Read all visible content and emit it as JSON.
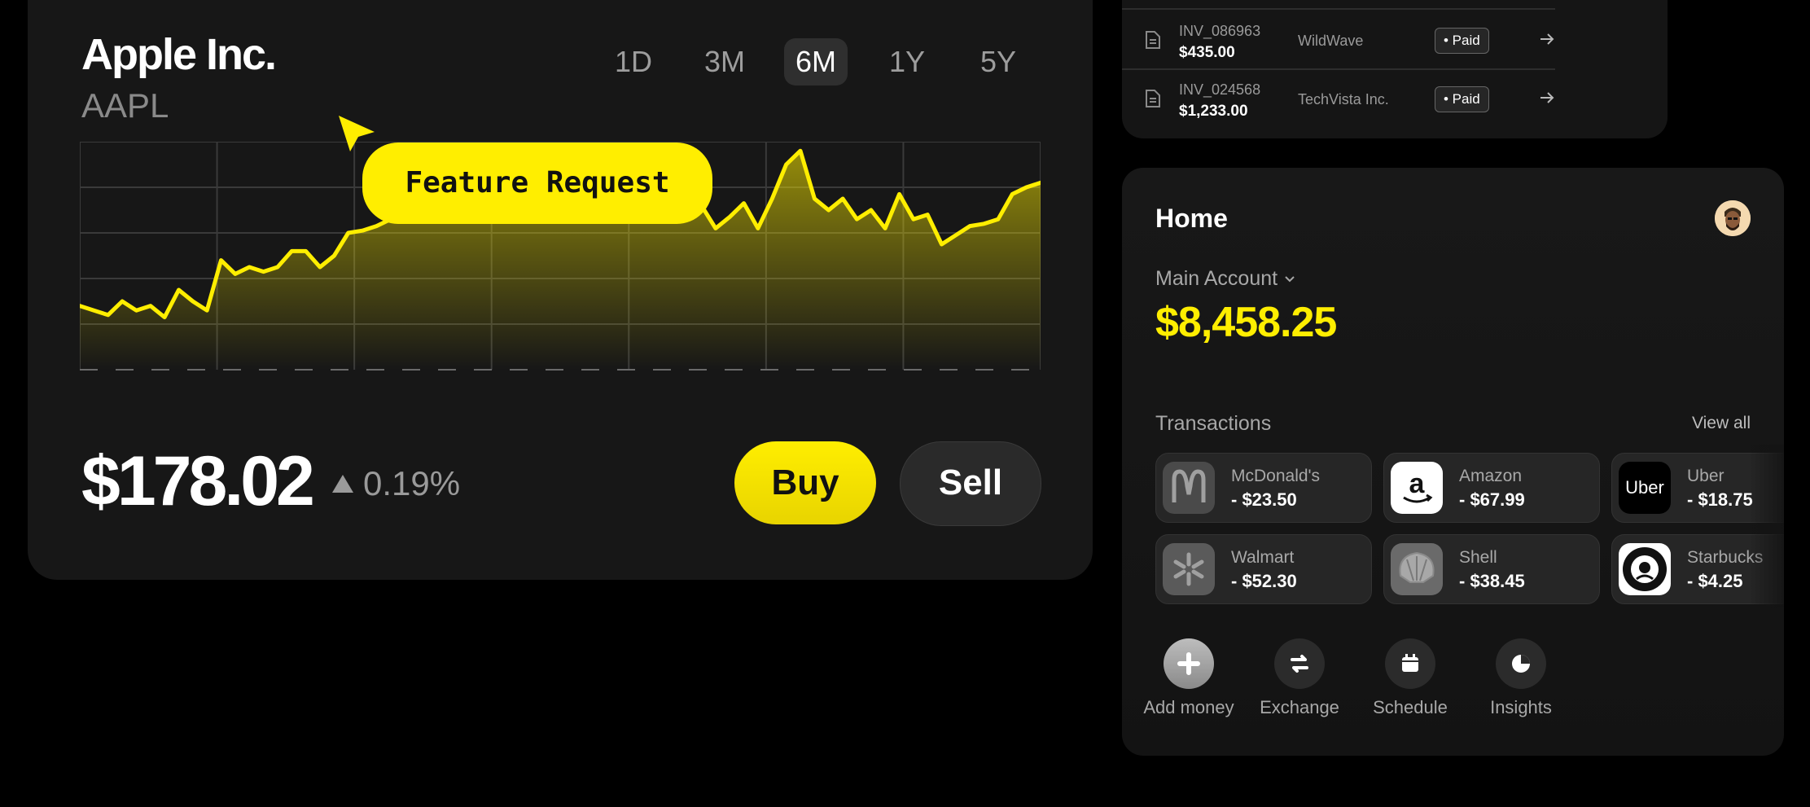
{
  "stock": {
    "name": "Apple Inc.",
    "ticker": "AAPL",
    "ranges": [
      "1D",
      "3M",
      "6M",
      "1Y",
      "5Y"
    ],
    "active_range": "6M",
    "price": "$178.02",
    "change": "0.19%",
    "buy_label": "Buy",
    "sell_label": "Sell",
    "badge": "Feature Request",
    "accent": "#FFEE00"
  },
  "chart_data": {
    "type": "area",
    "x": [
      0,
      1,
      2,
      3,
      4,
      5,
      6,
      7,
      8,
      9,
      10,
      11,
      12,
      13,
      14,
      15,
      16,
      17,
      18,
      19,
      20,
      21,
      22,
      23,
      24,
      25,
      26,
      27,
      28,
      29,
      30,
      31,
      32,
      33,
      34,
      35,
      36,
      37,
      38,
      39,
      40,
      41,
      42,
      43,
      44,
      45,
      46,
      47,
      48,
      49,
      50,
      51,
      52,
      53,
      54,
      55,
      56,
      57,
      58,
      59,
      60,
      61,
      62,
      63,
      64,
      65,
      66,
      67,
      68
    ],
    "series": [
      {
        "values": [
          28,
          26,
          24,
          30,
          26,
          28,
          23,
          35,
          30,
          26,
          48,
          42,
          45,
          43,
          45,
          52,
          52,
          45,
          50,
          60,
          61,
          63,
          66,
          70,
          75,
          73,
          76,
          80,
          82,
          84,
          86,
          85,
          88,
          92,
          90,
          95,
          92,
          97,
          93,
          88,
          75,
          78,
          74,
          76,
          72,
          62,
          67,
          73,
          62,
          75,
          90,
          96,
          75,
          70,
          75,
          66,
          70,
          62,
          77,
          66,
          68,
          55,
          59,
          63,
          64,
          66,
          77,
          80,
          82
        ],
        "color": "#FFEE00"
      }
    ],
    "grid": true,
    "legend": "none"
  },
  "invoices": [
    {
      "id": "INV_086963",
      "amount": "$435.00",
      "client": "WildWave",
      "status": "• Paid"
    },
    {
      "id": "INV_024568",
      "amount": "$1,233.00",
      "client": "TechVista Inc.",
      "status": "• Paid"
    }
  ],
  "home": {
    "title": "Home",
    "account_label": "Main Account",
    "balance": "$8,458.25",
    "transactions_title": "Transactions",
    "view_all": "View all",
    "transactions": [
      {
        "merchant": "McDonald's",
        "amount": "- $23.50",
        "icon": "mcdonalds-logo-icon"
      },
      {
        "merchant": "Amazon",
        "amount": "- $67.99",
        "icon": "amazon-logo-icon"
      },
      {
        "merchant": "Uber",
        "amount": "- $18.75",
        "icon": "uber-logo-icon",
        "logo_text": "Uber"
      },
      {
        "merchant": "Walmart",
        "amount": "- $52.30",
        "icon": "walmart-logo-icon"
      },
      {
        "merchant": "Shell",
        "amount": "- $38.45",
        "icon": "shell-logo-icon"
      },
      {
        "merchant": "Starbucks",
        "amount": "- $4.25",
        "icon": "starbucks-logo-icon"
      }
    ],
    "actions": [
      {
        "label": "Add money",
        "icon": "plus-icon"
      },
      {
        "label": "Exchange",
        "icon": "exchange-icon"
      },
      {
        "label": "Schedule",
        "icon": "calendar-icon"
      },
      {
        "label": "Insights",
        "icon": "pie-chart-icon"
      }
    ]
  }
}
